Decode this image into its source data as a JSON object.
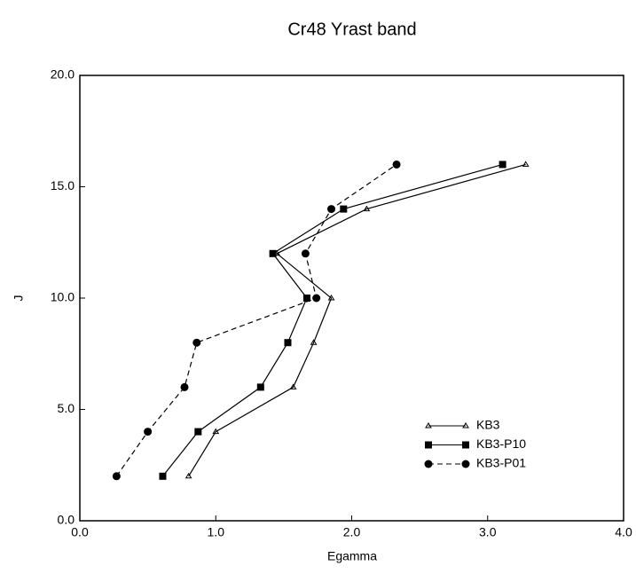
{
  "chart_data": {
    "type": "line",
    "title": "Cr48 Yrast band",
    "x_label": "Egamma",
    "y_label": "J",
    "xlim": [
      0,
      4
    ],
    "ylim": [
      0,
      20
    ],
    "xticks": [
      {
        "value": 0,
        "label": "0.0"
      },
      {
        "value": 1,
        "label": "1.0"
      },
      {
        "value": 2,
        "label": "2.0"
      },
      {
        "value": 3,
        "label": "3.0"
      },
      {
        "value": 4,
        "label": "4.0"
      }
    ],
    "yticks": [
      {
        "value": 0,
        "label": "0.0"
      },
      {
        "value": 5,
        "label": "5.0"
      },
      {
        "value": 10,
        "label": "10.0"
      },
      {
        "value": 15,
        "label": "15.0"
      },
      {
        "value": 20,
        "label": "20.0"
      }
    ],
    "legend": "lower right",
    "series": [
      {
        "name": "KB3",
        "color": "#000000",
        "marker": "triangle",
        "dash": "solid",
        "x": [
          0.8,
          1.0,
          1.57,
          1.72,
          1.85,
          1.45,
          2.11,
          3.28
        ],
        "values": [
          2,
          4,
          6,
          8,
          10,
          12,
          14,
          16
        ]
      },
      {
        "name": "KB3-P10",
        "color": "#000000",
        "marker": "square",
        "dash": "solid",
        "x": [
          0.61,
          0.87,
          1.33,
          1.53,
          1.67,
          1.42,
          1.94,
          3.11
        ],
        "values": [
          2,
          4,
          6,
          8,
          10,
          12,
          14,
          16
        ]
      },
      {
        "name": "KB3-P01",
        "color": "#000000",
        "marker": "circle",
        "dash": "dashed",
        "x": [
          0.27,
          0.5,
          0.77,
          0.86,
          1.74,
          1.66,
          1.85,
          2.33
        ],
        "values": [
          2,
          4,
          6,
          8,
          10,
          12,
          14,
          16
        ]
      }
    ]
  }
}
